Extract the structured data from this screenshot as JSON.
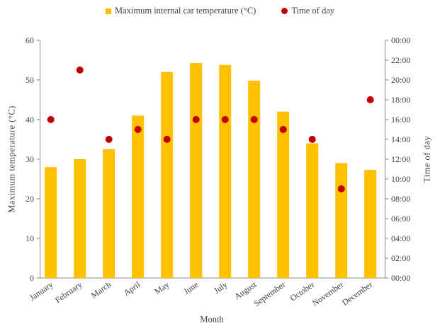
{
  "legend": {
    "temperature_label": "Maximum internal car temperature (°C)",
    "time_label": "Time of day"
  },
  "colors": {
    "bar": "#FFC000",
    "dot": "#C00000",
    "axis": "#898989",
    "text": "#3f3f3f"
  },
  "chart_data": {
    "type": "bar",
    "title": "",
    "categories": [
      "January",
      "February",
      "March",
      "April",
      "May",
      "June",
      "July",
      "August",
      "September",
      "October",
      "November",
      "December"
    ],
    "series": [
      {
        "name": "Maximum internal car temperature (°C)",
        "type": "bar",
        "axis": "left",
        "values": [
          28,
          30,
          32.5,
          41,
          52,
          54.3,
          53.8,
          49.8,
          42,
          34,
          29,
          27.3
        ]
      },
      {
        "name": "Time of day",
        "type": "scatter",
        "axis": "right",
        "values": [
          "16:00",
          "21:00",
          "14:00",
          "15:00",
          "14:00",
          "16:00",
          "16:00",
          "16:00",
          "15:00",
          "14:00",
          "09:00",
          "18:00"
        ]
      }
    ],
    "xlabel": "Month",
    "ylabel_left": "Maximum temperature (°C)",
    "ylabel_right": "Time  of  day",
    "ylim_left": [
      0,
      60
    ],
    "yticks_left": [
      "0",
      "10",
      "20",
      "30",
      "40",
      "50",
      "60"
    ],
    "ylim_right_hours": [
      0,
      24
    ],
    "yticks_right": [
      "00:00",
      "02:00",
      "04:00",
      "06:00",
      "08:00",
      "10:00",
      "12:00",
      "14:00",
      "16:00",
      "18:00",
      "20:00",
      "22:00",
      "00:00"
    ],
    "grid": false,
    "legend_position": "top"
  }
}
